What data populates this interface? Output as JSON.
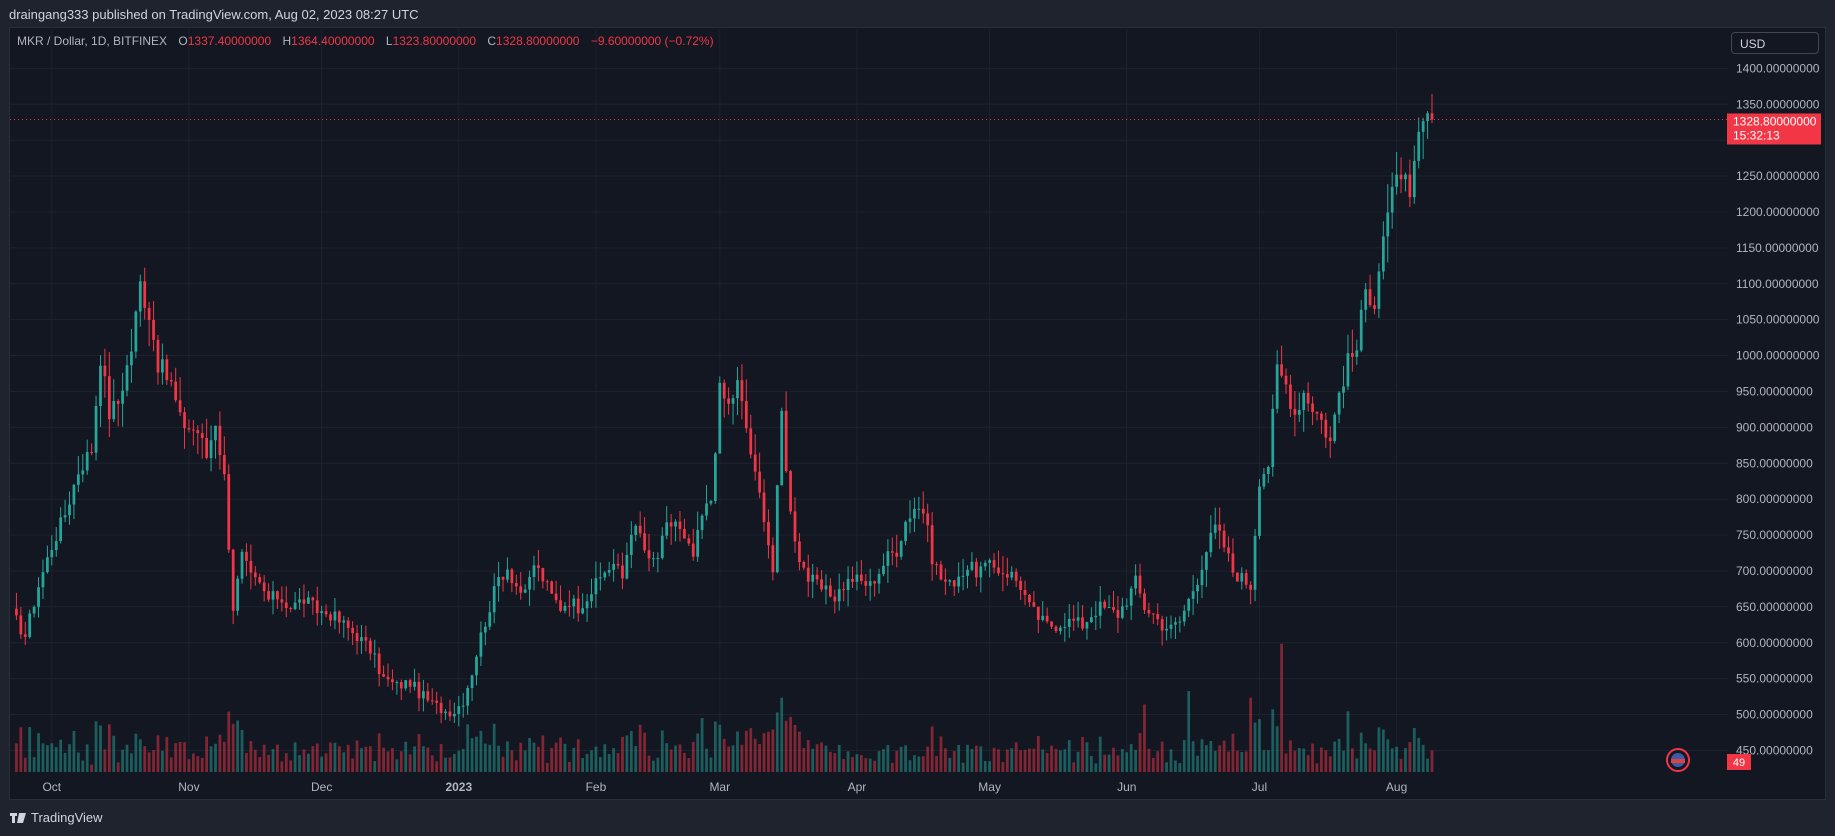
{
  "header": {
    "published_text": "draingang333 published on TradingView.com, Aug 02, 2023 08:27 UTC"
  },
  "legend": {
    "symbol": "MKR / Dollar, 1D, BITFINEX",
    "open_label": "O",
    "open": "1337.40000000",
    "high_label": "H",
    "high": "1364.40000000",
    "low_label": "L",
    "low": "1323.80000000",
    "close_label": "C",
    "close": "1328.80000000",
    "change": "−9.60000000 (−0.72%)"
  },
  "currency_button": {
    "label": "USD"
  },
  "price_badge": {
    "price": "1328.80000000",
    "countdown": "15:32:13"
  },
  "volume_badge": {
    "label": "49"
  },
  "footer": {
    "brand": "TradingView"
  },
  "colors": {
    "up": "#26a69a",
    "down": "#f23645",
    "background": "#131722",
    "grid": "#1e222d",
    "text": "#b2b5be"
  },
  "chart_data": {
    "type": "candlestick",
    "ylim": [
      420,
      1420
    ],
    "y_ticks": [
      "450.00000000",
      "500.00000000",
      "550.00000000",
      "600.00000000",
      "650.00000000",
      "700.00000000",
      "750.00000000",
      "800.00000000",
      "850.00000000",
      "900.00000000",
      "950.00000000",
      "1000.00000000",
      "1050.00000000",
      "1100.00000000",
      "1150.00000000",
      "1200.00000000",
      "1250.00000000",
      "1300.00000000",
      "1350.00000000",
      "1400.00000000"
    ],
    "x_ticks": [
      {
        "label": "Oct",
        "day": 9
      },
      {
        "label": "Nov",
        "day": 40
      },
      {
        "label": "Dec",
        "day": 70
      },
      {
        "label": "2023",
        "day": 101
      },
      {
        "label": "Feb",
        "day": 132
      },
      {
        "label": "Mar",
        "day": 160
      },
      {
        "label": "Apr",
        "day": 191
      },
      {
        "label": "May",
        "day": 221
      },
      {
        "label": "Jun",
        "day": 252
      },
      {
        "label": "Jul",
        "day": 282
      },
      {
        "label": "Aug",
        "day": 313
      }
    ],
    "last_price": 1328.8,
    "keyframes": [
      [
        0,
        640
      ],
      [
        3,
        610
      ],
      [
        6,
        680
      ],
      [
        9,
        735
      ],
      [
        12,
        780
      ],
      [
        15,
        840
      ],
      [
        18,
        870
      ],
      [
        20,
        1000
      ],
      [
        22,
        920
      ],
      [
        24,
        935
      ],
      [
        27,
        1010
      ],
      [
        29,
        1100
      ],
      [
        31,
        1060
      ],
      [
        33,
        990
      ],
      [
        36,
        960
      ],
      [
        38,
        910
      ],
      [
        40,
        900
      ],
      [
        42,
        895
      ],
      [
        44,
        860
      ],
      [
        46,
        910
      ],
      [
        48,
        830
      ],
      [
        50,
        650
      ],
      [
        52,
        720
      ],
      [
        54,
        690
      ],
      [
        56,
        680
      ],
      [
        58,
        660
      ],
      [
        60,
        665
      ],
      [
        63,
        650
      ],
      [
        66,
        660
      ],
      [
        69,
        645
      ],
      [
        72,
        640
      ],
      [
        75,
        625
      ],
      [
        78,
        610
      ],
      [
        81,
        590
      ],
      [
        84,
        550
      ],
      [
        87,
        540
      ],
      [
        90,
        545
      ],
      [
        92,
        530
      ],
      [
        95,
        515
      ],
      [
        98,
        505
      ],
      [
        100,
        505
      ],
      [
        102,
        520
      ],
      [
        104,
        560
      ],
      [
        106,
        610
      ],
      [
        108,
        650
      ],
      [
        110,
        690
      ],
      [
        112,
        705
      ],
      [
        114,
        680
      ],
      [
        116,
        665
      ],
      [
        118,
        710
      ],
      [
        120,
        690
      ],
      [
        122,
        665
      ],
      [
        124,
        650
      ],
      [
        126,
        660
      ],
      [
        128,
        650
      ],
      [
        130,
        665
      ],
      [
        132,
        680
      ],
      [
        134,
        700
      ],
      [
        136,
        710
      ],
      [
        138,
        690
      ],
      [
        140,
        760
      ],
      [
        142,
        750
      ],
      [
        144,
        710
      ],
      [
        146,
        720
      ],
      [
        148,
        760
      ],
      [
        150,
        770
      ],
      [
        152,
        740
      ],
      [
        154,
        720
      ],
      [
        156,
        775
      ],
      [
        158,
        800
      ],
      [
        160,
        950
      ],
      [
        162,
        930
      ],
      [
        164,
        960
      ],
      [
        166,
        900
      ],
      [
        168,
        830
      ],
      [
        170,
        780
      ],
      [
        172,
        700
      ],
      [
        174,
        920
      ],
      [
        176,
        780
      ],
      [
        178,
        720
      ],
      [
        180,
        690
      ],
      [
        182,
        680
      ],
      [
        184,
        670
      ],
      [
        186,
        665
      ],
      [
        188,
        680
      ],
      [
        190,
        690
      ],
      [
        192,
        685
      ],
      [
        194,
        680
      ],
      [
        196,
        700
      ],
      [
        198,
        720
      ],
      [
        200,
        730
      ],
      [
        202,
        770
      ],
      [
        204,
        790
      ],
      [
        206,
        785
      ],
      [
        208,
        720
      ],
      [
        210,
        690
      ],
      [
        212,
        680
      ],
      [
        214,
        695
      ],
      [
        216,
        705
      ],
      [
        218,
        700
      ],
      [
        220,
        705
      ],
      [
        222,
        705
      ],
      [
        224,
        700
      ],
      [
        226,
        695
      ],
      [
        228,
        680
      ],
      [
        230,
        650
      ],
      [
        232,
        635
      ],
      [
        234,
        625
      ],
      [
        236,
        625
      ],
      [
        238,
        630
      ],
      [
        240,
        630
      ],
      [
        242,
        625
      ],
      [
        244,
        640
      ],
      [
        246,
        650
      ],
      [
        248,
        645
      ],
      [
        250,
        640
      ],
      [
        252,
        660
      ],
      [
        254,
        685
      ],
      [
        256,
        650
      ],
      [
        258,
        640
      ],
      [
        260,
        625
      ],
      [
        262,
        620
      ],
      [
        264,
        630
      ],
      [
        266,
        660
      ],
      [
        268,
        690
      ],
      [
        270,
        730
      ],
      [
        272,
        760
      ],
      [
        274,
        735
      ],
      [
        276,
        700
      ],
      [
        278,
        690
      ],
      [
        280,
        680
      ],
      [
        282,
        830
      ],
      [
        284,
        850
      ],
      [
        286,
        980
      ],
      [
        288,
        960
      ],
      [
        290,
        920
      ],
      [
        292,
        950
      ],
      [
        294,
        930
      ],
      [
        296,
        910
      ],
      [
        298,
        880
      ],
      [
        300,
        950
      ],
      [
        302,
        990
      ],
      [
        304,
        1010
      ],
      [
        306,
        1090
      ],
      [
        308,
        1080
      ],
      [
        310,
        1170
      ],
      [
        312,
        1220
      ],
      [
        314,
        1260
      ],
      [
        316,
        1210
      ],
      [
        318,
        1300
      ],
      [
        320,
        1337.4
      ],
      [
        321,
        1328.8
      ]
    ],
    "volume_spikes": [
      [
        287,
        0.95
      ],
      [
        174,
        0.55
      ],
      [
        266,
        0.6
      ],
      [
        280,
        0.55
      ],
      [
        302,
        0.45
      ],
      [
        156,
        0.4
      ],
      [
        160,
        0.35
      ],
      [
        256,
        0.5
      ],
      [
        142,
        0.35
      ],
      [
        164,
        0.3
      ]
    ]
  }
}
